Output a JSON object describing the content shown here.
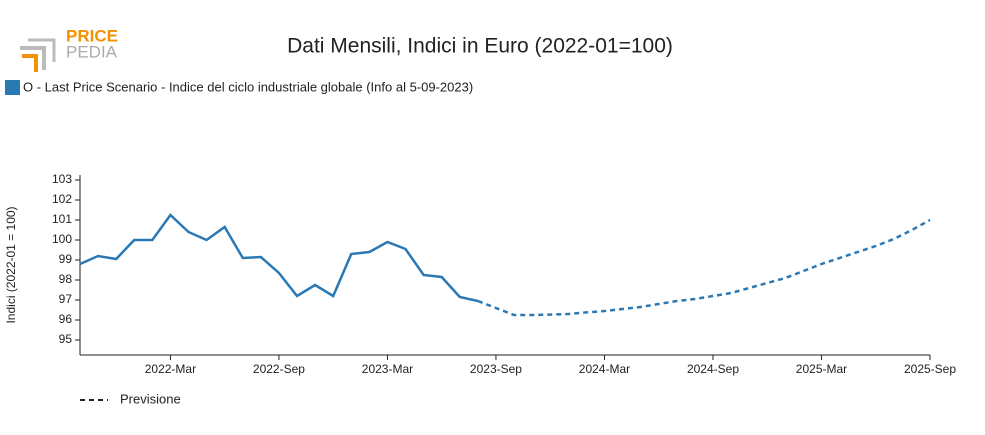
{
  "logo": {
    "line1": "PRICE",
    "line2": "PEDIA"
  },
  "chart_data": {
    "type": "line",
    "title": "Dati Mensili, Indici in Euro (2022-01=100)",
    "y_label": "Indici (2022-01 = 100)",
    "categories": [
      null,
      null,
      null,
      null,
      null,
      "2022-Mar",
      null,
      null,
      null,
      null,
      null,
      "2022-Sep",
      null,
      null,
      null,
      null,
      null,
      "2023-Mar",
      null,
      null,
      null,
      null,
      null,
      "2023-Sep",
      null,
      null,
      null,
      null,
      null,
      "2024-Mar",
      null,
      null,
      null,
      null,
      null,
      "2024-Sep",
      null,
      null,
      null,
      null,
      null,
      "2025-Mar",
      null,
      null,
      null,
      null,
      null,
      "2025-Sep"
    ],
    "series": [
      {
        "name": "O - Last Price Scenario - Indice del ciclo industriale globale (Info al 5-09-2023)",
        "color": "#2a78b4",
        "dash": false,
        "values": [
          98.8,
          99.2,
          99.05,
          100.0,
          100.0,
          101.25,
          100.4,
          100.0,
          100.65,
          99.1,
          99.15,
          98.35,
          97.2,
          97.75,
          97.2,
          99.3,
          99.4,
          99.9,
          99.55,
          98.25,
          98.15,
          97.15,
          96.95,
          null,
          null,
          null,
          null,
          null,
          null,
          null,
          null,
          null,
          null,
          null,
          null,
          null,
          null,
          null,
          null,
          null,
          null,
          null,
          null,
          null,
          null,
          null,
          null,
          null
        ]
      },
      {
        "name": "Previsione",
        "color": "#2a78b4",
        "dash": true,
        "values": [
          null,
          null,
          null,
          null,
          null,
          null,
          null,
          null,
          null,
          null,
          null,
          null,
          null,
          null,
          null,
          null,
          null,
          null,
          null,
          null,
          null,
          null,
          96.95,
          96.6,
          96.25,
          96.25,
          96.27,
          96.3,
          96.38,
          96.45,
          96.55,
          96.65,
          96.8,
          96.95,
          97.05,
          97.2,
          97.35,
          97.6,
          97.85,
          98.1,
          98.45,
          98.8,
          99.1,
          99.4,
          99.7,
          100.05,
          100.5,
          101.0
        ]
      }
    ],
    "ylim": [
      94.25,
      103.25
    ],
    "yticks": [
      95,
      96,
      97,
      98,
      99,
      100,
      101,
      102,
      103
    ],
    "grid": false
  }
}
